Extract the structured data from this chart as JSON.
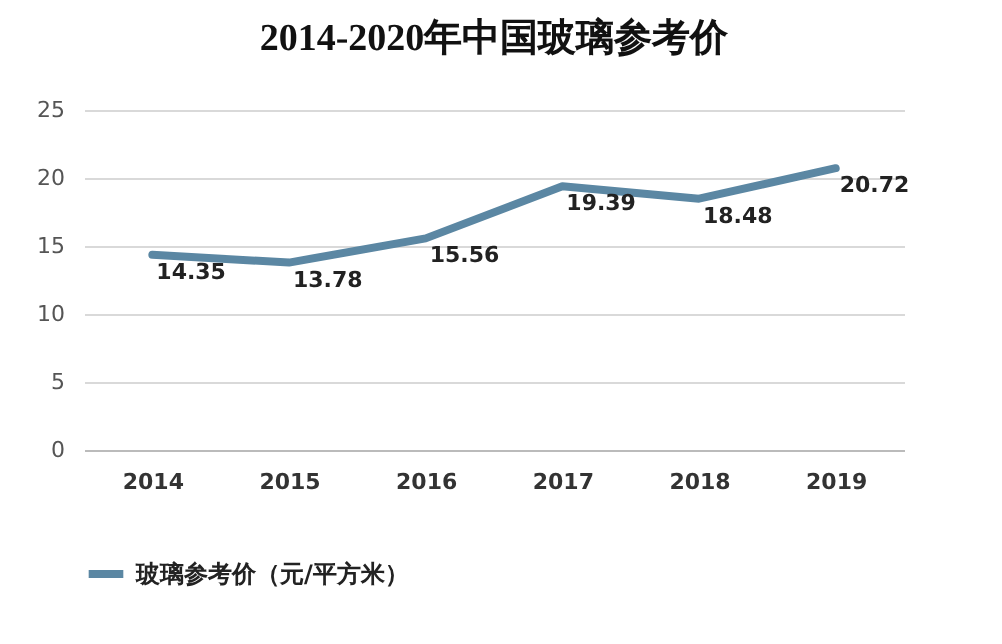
{
  "chart_data": {
    "type": "line",
    "title": "2014-2020年中国玻璃参考价",
    "categories": [
      "2014",
      "2015",
      "2016",
      "2017",
      "2018",
      "2019"
    ],
    "series": [
      {
        "name": "玻璃参考价（元/平方米）",
        "color": "#5b87a3",
        "values": [
          14.35,
          13.78,
          15.56,
          19.39,
          18.48,
          20.72
        ]
      }
    ],
    "ylim": [
      0,
      25
    ],
    "yticks": [
      0,
      5,
      10,
      15,
      20,
      25
    ],
    "grid": "y",
    "legend": "bottom",
    "data_labels": true,
    "line_style": "solid"
  }
}
